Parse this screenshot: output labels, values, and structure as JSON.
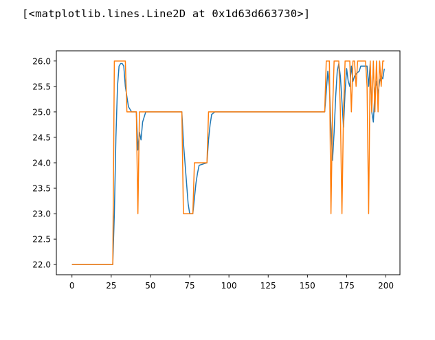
{
  "output_text": "[<matplotlib.lines.Line2D at 0x1d63d663730>]",
  "chart_data": {
    "type": "line",
    "title": "",
    "xlabel": "",
    "ylabel": "",
    "xlim": [
      -9.95,
      208.95
    ],
    "ylim": [
      21.8,
      26.2
    ],
    "xticks": [
      0,
      25,
      50,
      75,
      100,
      125,
      150,
      175,
      200
    ],
    "yticks": [
      22.0,
      22.5,
      23.0,
      23.5,
      24.0,
      24.5,
      25.0,
      25.5,
      26.0
    ],
    "grid": false,
    "series": [
      {
        "color": "#1f77b4",
        "points": [
          [
            0,
            22.0
          ],
          [
            26,
            22.0
          ],
          [
            27,
            23.0
          ],
          [
            28,
            24.5
          ],
          [
            29,
            25.5
          ],
          [
            30,
            25.9
          ],
          [
            31,
            25.95
          ],
          [
            32,
            25.95
          ],
          [
            33,
            25.9
          ],
          [
            34,
            25.5
          ],
          [
            35,
            25.3
          ],
          [
            36,
            25.1
          ],
          [
            38,
            25.0
          ],
          [
            41,
            25.0
          ],
          [
            42,
            24.25
          ],
          [
            43,
            24.6
          ],
          [
            44,
            24.45
          ],
          [
            45,
            24.8
          ],
          [
            47,
            25.0
          ],
          [
            50,
            25.0
          ],
          [
            70,
            25.0
          ],
          [
            71,
            24.4
          ],
          [
            72,
            24.0
          ],
          [
            73,
            23.6
          ],
          [
            74,
            23.2
          ],
          [
            75,
            23.0
          ],
          [
            77,
            23.0
          ],
          [
            78,
            23.3
          ],
          [
            79,
            23.6
          ],
          [
            80,
            23.8
          ],
          [
            81,
            23.95
          ],
          [
            86,
            24.0
          ],
          [
            87,
            24.45
          ],
          [
            88,
            24.75
          ],
          [
            89,
            24.95
          ],
          [
            91,
            25.0
          ],
          [
            161,
            25.0
          ],
          [
            162,
            25.4
          ],
          [
            163,
            25.8
          ],
          [
            164,
            25.5
          ],
          [
            165,
            24.7
          ],
          [
            166,
            24.05
          ],
          [
            167,
            24.6
          ],
          [
            168,
            25.3
          ],
          [
            169,
            25.8
          ],
          [
            170,
            25.95
          ],
          [
            171,
            25.7
          ],
          [
            172,
            25.2
          ],
          [
            173,
            24.7
          ],
          [
            174,
            25.4
          ],
          [
            175,
            25.85
          ],
          [
            176,
            25.6
          ],
          [
            177,
            25.5
          ],
          [
            178,
            25.9
          ],
          [
            179,
            25.6
          ],
          [
            180,
            25.7
          ],
          [
            181,
            25.75
          ],
          [
            183,
            25.8
          ],
          [
            184,
            25.9
          ],
          [
            188,
            25.9
          ],
          [
            189,
            25.5
          ],
          [
            190,
            25.95
          ],
          [
            191,
            25.0
          ],
          [
            192,
            24.8
          ],
          [
            193,
            25.4
          ],
          [
            194,
            25.6
          ],
          [
            195,
            25.35
          ],
          [
            196,
            25.6
          ],
          [
            197,
            25.7
          ],
          [
            198,
            25.65
          ],
          [
            199,
            25.85
          ]
        ]
      },
      {
        "color": "#ff7f0e",
        "points": [
          [
            0,
            22.0
          ],
          [
            26,
            22.0
          ],
          [
            27,
            26.0
          ],
          [
            34,
            26.0
          ],
          [
            35,
            25.0
          ],
          [
            38,
            25.0
          ],
          [
            39,
            25.0
          ],
          [
            41,
            25.0
          ],
          [
            42,
            23.0
          ],
          [
            43,
            25.0
          ],
          [
            70,
            25.0
          ],
          [
            71,
            23.0
          ],
          [
            77,
            23.0
          ],
          [
            78,
            24.0
          ],
          [
            86,
            24.0
          ],
          [
            87,
            25.0
          ],
          [
            161,
            25.0
          ],
          [
            162,
            26.0
          ],
          [
            164,
            26.0
          ],
          [
            165,
            23.0
          ],
          [
            166,
            25.0
          ],
          [
            167,
            26.0
          ],
          [
            170,
            26.0
          ],
          [
            171,
            25.0
          ],
          [
            172,
            23.0
          ],
          [
            173,
            25.0
          ],
          [
            174,
            26.0
          ],
          [
            177,
            26.0
          ],
          [
            178,
            25.0
          ],
          [
            179,
            26.0
          ],
          [
            180,
            26.0
          ],
          [
            181,
            25.5
          ],
          [
            182,
            26.0
          ],
          [
            187,
            26.0
          ],
          [
            188,
            25.5
          ],
          [
            189,
            23.0
          ],
          [
            190,
            26.0
          ],
          [
            191,
            25.0
          ],
          [
            192,
            26.0
          ],
          [
            193,
            25.0
          ],
          [
            194,
            26.0
          ],
          [
            195,
            25.0
          ],
          [
            196,
            26.0
          ],
          [
            197,
            25.5
          ],
          [
            198,
            26.0
          ],
          [
            199,
            26.0
          ]
        ]
      }
    ]
  }
}
